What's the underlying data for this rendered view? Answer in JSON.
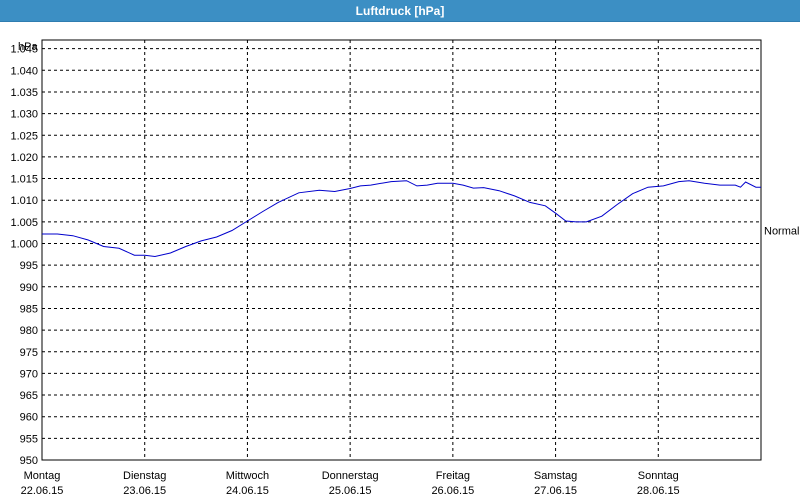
{
  "window": {
    "title": "Luftdruck [hPa]"
  },
  "chart_data": {
    "type": "line",
    "ylabel": "hPa",
    "ylim": [
      950,
      1047
    ],
    "yticks": [
      950,
      955,
      960,
      965,
      970,
      975,
      980,
      985,
      990,
      995,
      1000,
      1005,
      1010,
      1015,
      1020,
      1025,
      1030,
      1035,
      1040,
      1045
    ],
    "ytick_labels": [
      "950",
      "955",
      "960",
      "965",
      "970",
      "975",
      "980",
      "985",
      "990",
      "995",
      "1.000",
      "1.005",
      "1.010",
      "1.015",
      "1.020",
      "1.025",
      "1.030",
      "1.035",
      "1.040",
      "1.045"
    ],
    "xlim": [
      0,
      7
    ],
    "xticks": [
      {
        "day": "Montag",
        "date": "22.06.15"
      },
      {
        "day": "Dienstag",
        "date": "23.06.15"
      },
      {
        "day": "Mittwoch",
        "date": "24.06.15"
      },
      {
        "day": "Donnerstag",
        "date": "25.06.15"
      },
      {
        "day": "Freitag",
        "date": "26.06.15"
      },
      {
        "day": "Samstag",
        "date": "27.06.15"
      },
      {
        "day": "Sonntag",
        "date": "28.06.15"
      }
    ],
    "reference_line": {
      "label": "Normal",
      "value": 1003
    },
    "series": [
      {
        "color": "#0000cc",
        "x": [
          0,
          0.15,
          0.3,
          0.45,
          0.6,
          0.75,
          0.9,
          1.0,
          1.1,
          1.25,
          1.4,
          1.55,
          1.7,
          1.85,
          2.0,
          2.15,
          2.3,
          2.5,
          2.7,
          2.85,
          3.0,
          3.1,
          3.2,
          3.4,
          3.55,
          3.65,
          3.75,
          3.85,
          4.0,
          4.1,
          4.2,
          4.3,
          4.45,
          4.6,
          4.75,
          4.9,
          5.0,
          5.1,
          5.2,
          5.3,
          5.45,
          5.6,
          5.75,
          5.9,
          6.05,
          6.2,
          6.3,
          6.45,
          6.6,
          6.75,
          6.8,
          6.85,
          6.95,
          7.0
        ],
        "y": [
          1002.2,
          1002.2,
          1001.8,
          1000.8,
          999.3,
          998.9,
          997.3,
          997.3,
          997.0,
          997.8,
          999.3,
          1000.6,
          1001.5,
          1003.0,
          1005.2,
          1007.4,
          1009.5,
          1011.7,
          1012.3,
          1012.0,
          1012.7,
          1013.3,
          1013.5,
          1014.3,
          1014.5,
          1013.3,
          1013.5,
          1013.9,
          1013.9,
          1013.5,
          1012.8,
          1012.9,
          1012.2,
          1011.0,
          1009.5,
          1008.7,
          1007.0,
          1005.2,
          1005.0,
          1005.0,
          1006.3,
          1009.0,
          1011.5,
          1013.0,
          1013.3,
          1014.3,
          1014.5,
          1013.9,
          1013.5,
          1013.5,
          1013.0,
          1014.2,
          1013.0,
          1013.0
        ]
      }
    ]
  }
}
